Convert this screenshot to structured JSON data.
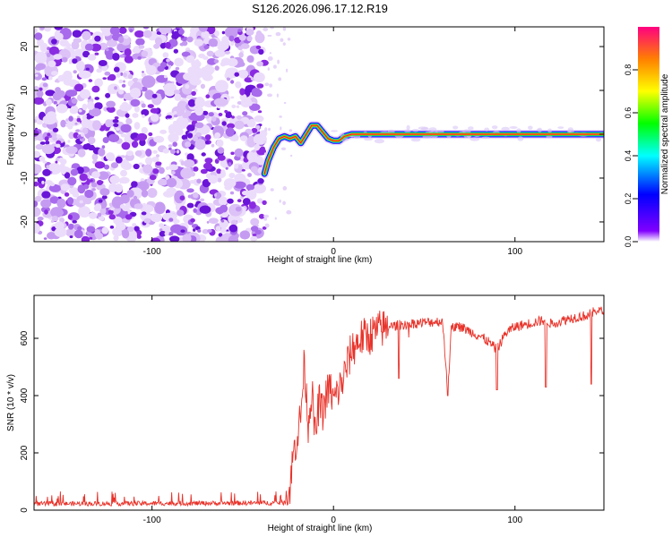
{
  "title": "S126.2026.096.17.12.R19",
  "colors": {
    "snr_line": "#e8332a",
    "axis": "#000000",
    "noise": "#8a2be2",
    "background": "#ffffff"
  },
  "chart_data": [
    {
      "type": "heatmap",
      "title": "S126.2026.096.17.12.R19",
      "xlabel": "Height of straight line (km)",
      "ylabel": "Frequency (Hz)",
      "xlim": [
        -165,
        149
      ],
      "ylim": [
        -24.5,
        24.5
      ],
      "xticks": [
        -100,
        0,
        100
      ],
      "yticks": [
        -20,
        -10,
        0,
        10,
        20
      ],
      "noise_region_x": [
        -165,
        -38
      ],
      "colorbar": {
        "label": "Normalized spectral amplitude",
        "range": [
          0,
          1
        ],
        "ticks": [
          0.0,
          0.2,
          0.4,
          0.6,
          0.8
        ],
        "colors": [
          "#ffffff",
          "#8000ff",
          "#0000ff",
          "#00ffff",
          "#00ff00",
          "#ffff00",
          "#ff8000",
          "#ff0080"
        ]
      },
      "ridge": {
        "x": [
          -38,
          -36,
          -33,
          -30,
          -27,
          -24,
          -21,
          -18,
          -15,
          -12,
          -9,
          -6,
          -3,
          0,
          3,
          6,
          10,
          20,
          40,
          60,
          80,
          100,
          120,
          149
        ],
        "y": [
          -9,
          -6,
          -3,
          -1,
          -0.5,
          -1,
          -0.5,
          -2,
          0,
          2,
          2,
          0.5,
          -1,
          -1.5,
          -1.5,
          -0.5,
          0,
          0,
          0,
          0,
          0,
          0,
          0,
          0
        ]
      }
    },
    {
      "type": "line",
      "xlabel": "Height of straight line (km)",
      "ylabel": "SNR (10 * v/v)",
      "xlim": [
        -165,
        149
      ],
      "ylim": [
        0,
        750
      ],
      "xticks": [
        -100,
        0,
        100
      ],
      "yticks": [
        0,
        200,
        400,
        600
      ],
      "series": [
        {
          "x": [
            -165,
            -120,
            -80,
            -40,
            -25,
            -22,
            -20,
            -18,
            -16,
            -14,
            -12,
            -10,
            -8,
            -6,
            -4,
            -2,
            0,
            5,
            10,
            15,
            20,
            25,
            30,
            35,
            40,
            50,
            60,
            63,
            65,
            70,
            80,
            85,
            90,
            95,
            100,
            110,
            117,
            120,
            130,
            140,
            143,
            145,
            149
          ],
          "y": [
            22,
            23,
            24,
            25,
            26,
            200,
            260,
            330,
            520,
            300,
            420,
            250,
            380,
            340,
            400,
            430,
            380,
            450,
            560,
            600,
            610,
            630,
            640,
            645,
            650,
            655,
            660,
            420,
            640,
            640,
            610,
            590,
            560,
            620,
            640,
            655,
            665,
            650,
            670,
            680,
            690,
            700,
            690
          ],
          "spikes_down": [
            [
              36,
              460
            ],
            [
              63,
              400
            ],
            [
              90,
              420
            ],
            [
              117,
              430
            ],
            [
              142,
              440
            ]
          ]
        }
      ]
    }
  ]
}
